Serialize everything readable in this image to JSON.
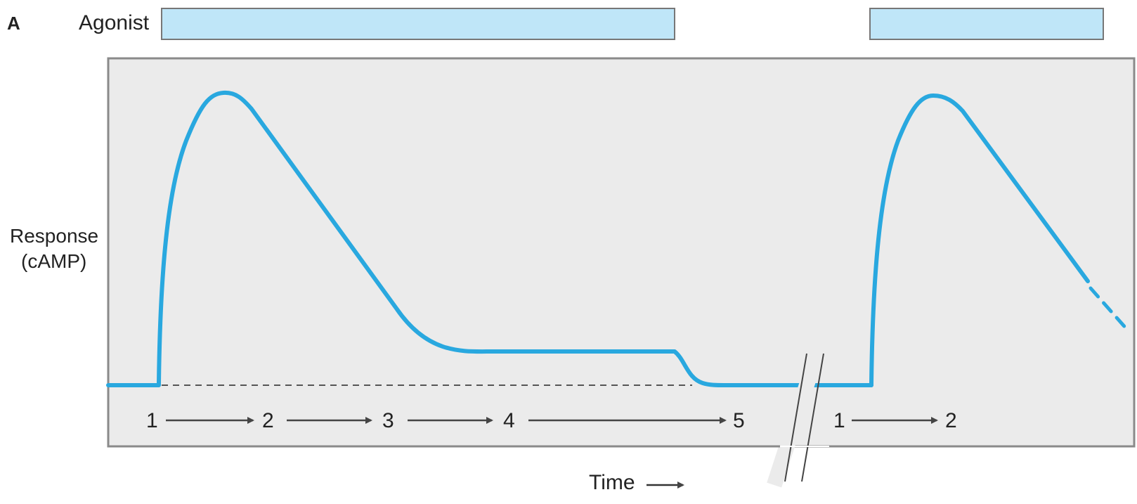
{
  "panel_label": "A",
  "agonist_label": "Agonist",
  "y_axis_label_line1": "Response",
  "y_axis_label_line2": "(cAMP)",
  "x_axis_label": "Time",
  "steps_first_phase": [
    "1",
    "2",
    "3",
    "4",
    "5"
  ],
  "steps_second_phase": [
    "1",
    "2"
  ],
  "colors": {
    "response_curve": "#29a8df",
    "agonist_bar_fill": "#bfe6f8",
    "agonist_bar_stroke": "#777777",
    "panel_fill": "#ebebeb",
    "panel_stroke": "#8a8a8a",
    "arrow": "#444444",
    "baseline_dash": "#555555"
  }
}
